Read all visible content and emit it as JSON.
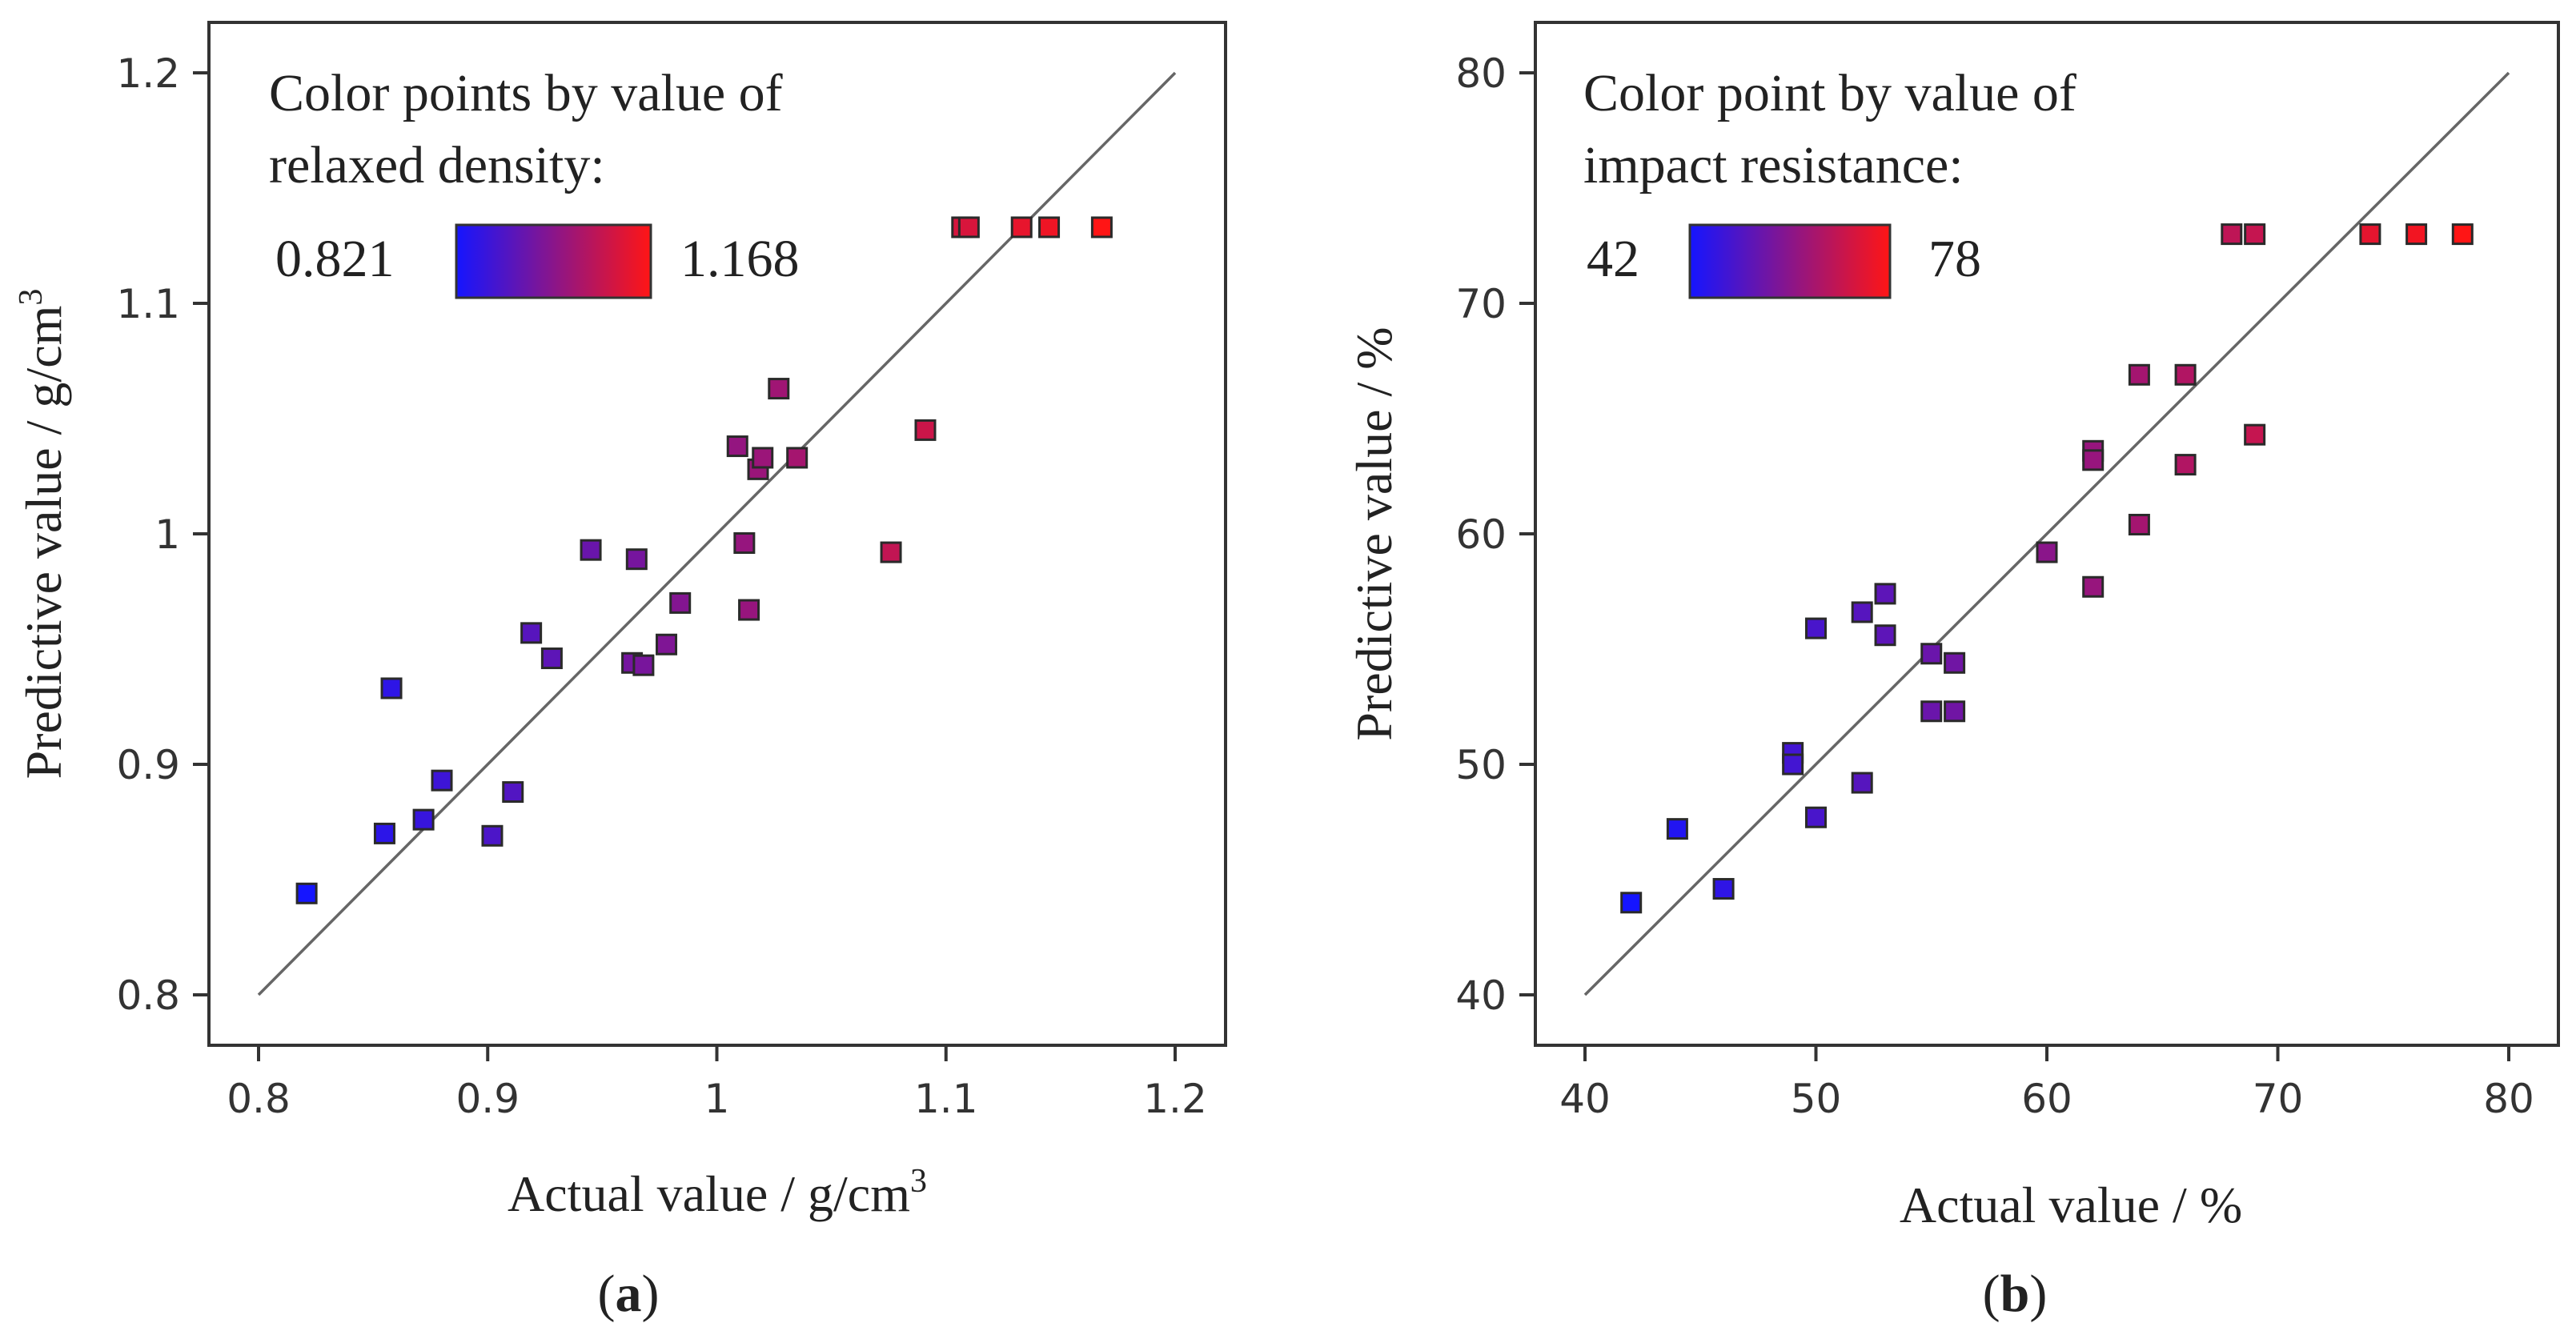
{
  "chart_data": [
    {
      "type": "scatter",
      "panel_label": "a",
      "xlabel_text": "Actual value / g/cm",
      "xlabel_superscript": "3",
      "ylabel_text": "Predictive value / g/cm",
      "ylabel_superscript": "3",
      "xlim": [
        0.8,
        1.2
      ],
      "ylim": [
        0.8,
        1.2
      ],
      "x_ticks": [
        0.8,
        0.9,
        1.0,
        1.1,
        1.2
      ],
      "x_tick_labels": [
        "0.8",
        "0.9",
        "1",
        "1.1",
        "1.2"
      ],
      "y_ticks": [
        0.8,
        0.9,
        1.0,
        1.1,
        1.2
      ],
      "y_tick_labels": [
        "0.8",
        "0.9",
        "1",
        "1.1",
        "1.2"
      ],
      "reference_line": [
        [
          0.8,
          0.8
        ],
        [
          1.2,
          1.2
        ]
      ],
      "legend": {
        "title_line1": "Color points by value of",
        "title_line2": "relaxed density:",
        "min_label": "0.821",
        "max_label": "1.168",
        "min": 0.821,
        "max": 1.168,
        "color_low": "#1515ff",
        "color_high": "#ff1515"
      },
      "points": [
        {
          "x": 0.821,
          "y": 0.844
        },
        {
          "x": 0.855,
          "y": 0.87
        },
        {
          "x": 0.858,
          "y": 0.933
        },
        {
          "x": 0.872,
          "y": 0.876
        },
        {
          "x": 0.88,
          "y": 0.893
        },
        {
          "x": 0.902,
          "y": 0.869
        },
        {
          "x": 0.911,
          "y": 0.888
        },
        {
          "x": 0.919,
          "y": 0.957
        },
        {
          "x": 0.928,
          "y": 0.946
        },
        {
          "x": 0.945,
          "y": 0.993
        },
        {
          "x": 0.963,
          "y": 0.944
        },
        {
          "x": 0.965,
          "y": 0.989
        },
        {
          "x": 0.968,
          "y": 0.943
        },
        {
          "x": 0.978,
          "y": 0.952
        },
        {
          "x": 0.984,
          "y": 0.97
        },
        {
          "x": 1.009,
          "y": 1.038
        },
        {
          "x": 1.012,
          "y": 0.996
        },
        {
          "x": 1.014,
          "y": 0.967
        },
        {
          "x": 1.018,
          "y": 1.028
        },
        {
          "x": 1.02,
          "y": 1.033
        },
        {
          "x": 1.027,
          "y": 1.063
        },
        {
          "x": 1.035,
          "y": 1.033
        },
        {
          "x": 1.076,
          "y": 0.992
        },
        {
          "x": 1.091,
          "y": 1.045
        },
        {
          "x": 1.107,
          "y": 1.133
        },
        {
          "x": 1.11,
          "y": 1.133
        },
        {
          "x": 1.133,
          "y": 1.133
        },
        {
          "x": 1.145,
          "y": 1.133
        },
        {
          "x": 1.168,
          "y": 1.133
        }
      ]
    },
    {
      "type": "scatter",
      "panel_label": "b",
      "xlabel_text": "Actual value / %",
      "xlabel_superscript": "",
      "ylabel_text": "Predictive value / %",
      "ylabel_superscript": "",
      "xlim": [
        40,
        80
      ],
      "ylim": [
        40,
        80
      ],
      "x_ticks": [
        40,
        50,
        60,
        70,
        80
      ],
      "x_tick_labels": [
        "40",
        "50",
        "60",
        "70",
        "80"
      ],
      "y_ticks": [
        40,
        50,
        60,
        70,
        80
      ],
      "y_tick_labels": [
        "40",
        "50",
        "60",
        "70",
        "80"
      ],
      "reference_line": [
        [
          40,
          40
        ],
        [
          80,
          80
        ]
      ],
      "legend": {
        "title_line1": "Color point by value of",
        "title_line2": "impact resistance:",
        "min_label": "42",
        "max_label": "78",
        "min": 42,
        "max": 78,
        "color_low": "#1515ff",
        "color_high": "#ff1515"
      },
      "points": [
        {
          "x": 42,
          "y": 44.0
        },
        {
          "x": 44,
          "y": 47.2
        },
        {
          "x": 46,
          "y": 44.6
        },
        {
          "x": 49,
          "y": 50.5
        },
        {
          "x": 49,
          "y": 50.0
        },
        {
          "x": 50,
          "y": 47.7
        },
        {
          "x": 50,
          "y": 55.9
        },
        {
          "x": 52,
          "y": 49.2
        },
        {
          "x": 52,
          "y": 56.6
        },
        {
          "x": 53,
          "y": 57.4
        },
        {
          "x": 53,
          "y": 55.6
        },
        {
          "x": 55,
          "y": 54.8
        },
        {
          "x": 55,
          "y": 52.3
        },
        {
          "x": 56,
          "y": 54.4
        },
        {
          "x": 56,
          "y": 52.3
        },
        {
          "x": 60,
          "y": 59.2
        },
        {
          "x": 62,
          "y": 63.6
        },
        {
          "x": 62,
          "y": 63.2
        },
        {
          "x": 62,
          "y": 57.7
        },
        {
          "x": 64,
          "y": 66.9
        },
        {
          "x": 64,
          "y": 60.4
        },
        {
          "x": 66,
          "y": 66.9
        },
        {
          "x": 66,
          "y": 63.0
        },
        {
          "x": 68,
          "y": 73.0
        },
        {
          "x": 69,
          "y": 73.0
        },
        {
          "x": 69,
          "y": 64.3
        },
        {
          "x": 74,
          "y": 73.0
        },
        {
          "x": 76,
          "y": 73.0
        },
        {
          "x": 78,
          "y": 73.0
        }
      ]
    }
  ]
}
